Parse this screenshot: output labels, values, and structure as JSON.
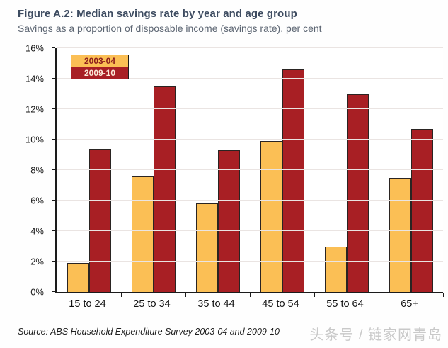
{
  "chart_data": {
    "type": "bar",
    "title": "Figure A.2: Median savings rate by year and age group",
    "subtitle": "Savings as a proportion of disposable income (savings rate), per cent",
    "categories": [
      "15 to 24",
      "25 to 34",
      "35 to 44",
      "45 to 54",
      "55 to 64",
      "65+"
    ],
    "series": [
      {
        "name": "2003-04",
        "color": "#fbbf55",
        "values": [
          1.9,
          7.6,
          5.8,
          9.9,
          3.0,
          7.5
        ]
      },
      {
        "name": "2009-10",
        "color": "#a81f24",
        "values": [
          9.4,
          13.5,
          9.3,
          14.6,
          13.0,
          10.7
        ]
      }
    ],
    "xlabel": "",
    "ylabel": "",
    "ylim": [
      0,
      16
    ],
    "yticks": [
      0,
      2,
      4,
      6,
      8,
      10,
      12,
      14,
      16
    ],
    "ytick_suffix": "%",
    "grid": "horizontal",
    "legend_position": "top-left"
  },
  "footer": {
    "source": "Source: ABS Household Expenditure Survey 2003-04 and 2009-10",
    "watermark": "头条号 / 链家网青岛"
  }
}
